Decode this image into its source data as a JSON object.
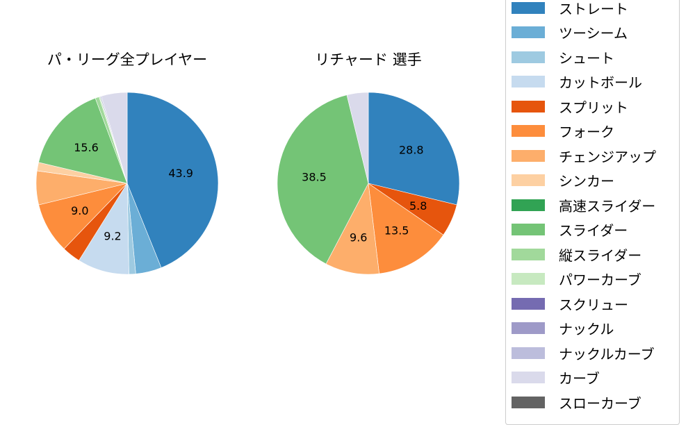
{
  "chart_data": [
    {
      "type": "pie",
      "title": "パ・リーグ全プレイヤー",
      "start_angle": 90,
      "direction": "clockwise",
      "categories": [
        "ストレート",
        "ツーシーム",
        "シュート",
        "カットボール",
        "スプリット",
        "フォーク",
        "チェンジアップ",
        "シンカー",
        "高速スライダー",
        "スライダー",
        "縦スライダー",
        "パワーカーブ",
        "スクリュー",
        "ナックル",
        "ナックルカーブ",
        "カーブ",
        "スローカーブ"
      ],
      "values": [
        43.9,
        4.6,
        1.2,
        9.2,
        3.3,
        9.0,
        6.0,
        1.5,
        0.0,
        15.6,
        0.7,
        0.2,
        0.0,
        0.0,
        0.2,
        4.6,
        0.0
      ],
      "labels_shown": {
        "ストレート": "43.9",
        "カットボール": "9.2",
        "フォーク": "9.0",
        "スライダー": "15.6"
      }
    },
    {
      "type": "pie",
      "title": "リチャード 選手",
      "start_angle": 90,
      "direction": "clockwise",
      "categories": [
        "ストレート",
        "スプリット",
        "フォーク",
        "チェンジアップ",
        "スライダー",
        "カーブ"
      ],
      "values": [
        28.8,
        5.8,
        13.5,
        9.6,
        38.5,
        3.8
      ],
      "labels_shown": {
        "ストレート": "28.8",
        "スプリット": "5.8",
        "フォーク": "13.5",
        "チェンジアップ": "9.6",
        "スライダー": "38.5"
      }
    }
  ],
  "titles": {
    "left": "パ・リーグ全プレイヤー",
    "right": "リチャード 選手"
  },
  "legend": {
    "position": "right",
    "items": [
      {
        "label": "ストレート",
        "color": "#3182bd"
      },
      {
        "label": "ツーシーム",
        "color": "#6baed6"
      },
      {
        "label": "シュート",
        "color": "#9ecae1"
      },
      {
        "label": "カットボール",
        "color": "#c6dbef"
      },
      {
        "label": "スプリット",
        "color": "#e6550d"
      },
      {
        "label": "フォーク",
        "color": "#fd8d3c"
      },
      {
        "label": "チェンジアップ",
        "color": "#fdae6b"
      },
      {
        "label": "シンカー",
        "color": "#fdd0a2"
      },
      {
        "label": "高速スライダー",
        "color": "#31a354"
      },
      {
        "label": "スライダー",
        "color": "#74c476"
      },
      {
        "label": "縦スライダー",
        "color": "#a1d99b"
      },
      {
        "label": "パワーカーブ",
        "color": "#c7e9c0"
      },
      {
        "label": "スクリュー",
        "color": "#756bb1"
      },
      {
        "label": "ナックル",
        "color": "#9e9ac8"
      },
      {
        "label": "ナックルカーブ",
        "color": "#bcbddc"
      },
      {
        "label": "カーブ",
        "color": "#dadaeb"
      },
      {
        "label": "スローカーブ",
        "color": "#636363"
      }
    ]
  }
}
